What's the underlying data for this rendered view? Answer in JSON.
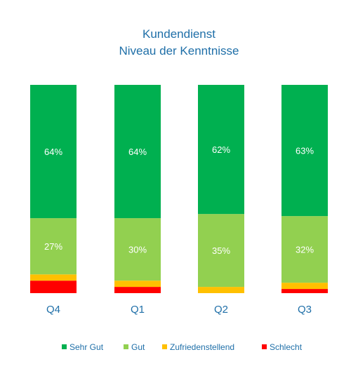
{
  "chart_data": {
    "type": "bar",
    "stacked": true,
    "percent_stacked": true,
    "title": [
      "Kundendienst",
      "Niveau der Kenntnisse"
    ],
    "categories": [
      "Q4",
      "Q1",
      "Q2",
      "Q3"
    ],
    "series": [
      {
        "name": "Sehr Gut",
        "color": "#00b050",
        "values": [
          64,
          64,
          62,
          63
        ],
        "labels": [
          "64%",
          "64%",
          "62%",
          "63%"
        ]
      },
      {
        "name": "Gut",
        "color": "#92d050",
        "values": [
          27,
          30,
          35,
          32
        ],
        "labels": [
          "27%",
          "30%",
          "35%",
          "32%"
        ]
      },
      {
        "name": "Zufriedenstellend",
        "color": "#ffc000",
        "values": [
          3,
          3,
          3,
          3
        ],
        "labels": []
      },
      {
        "name": "Schlecht",
        "color": "#ff0000",
        "values": [
          6,
          3,
          0,
          2
        ],
        "labels": []
      }
    ],
    "ylim": [
      0,
      100
    ],
    "legend": "bottom",
    "grid": false
  }
}
